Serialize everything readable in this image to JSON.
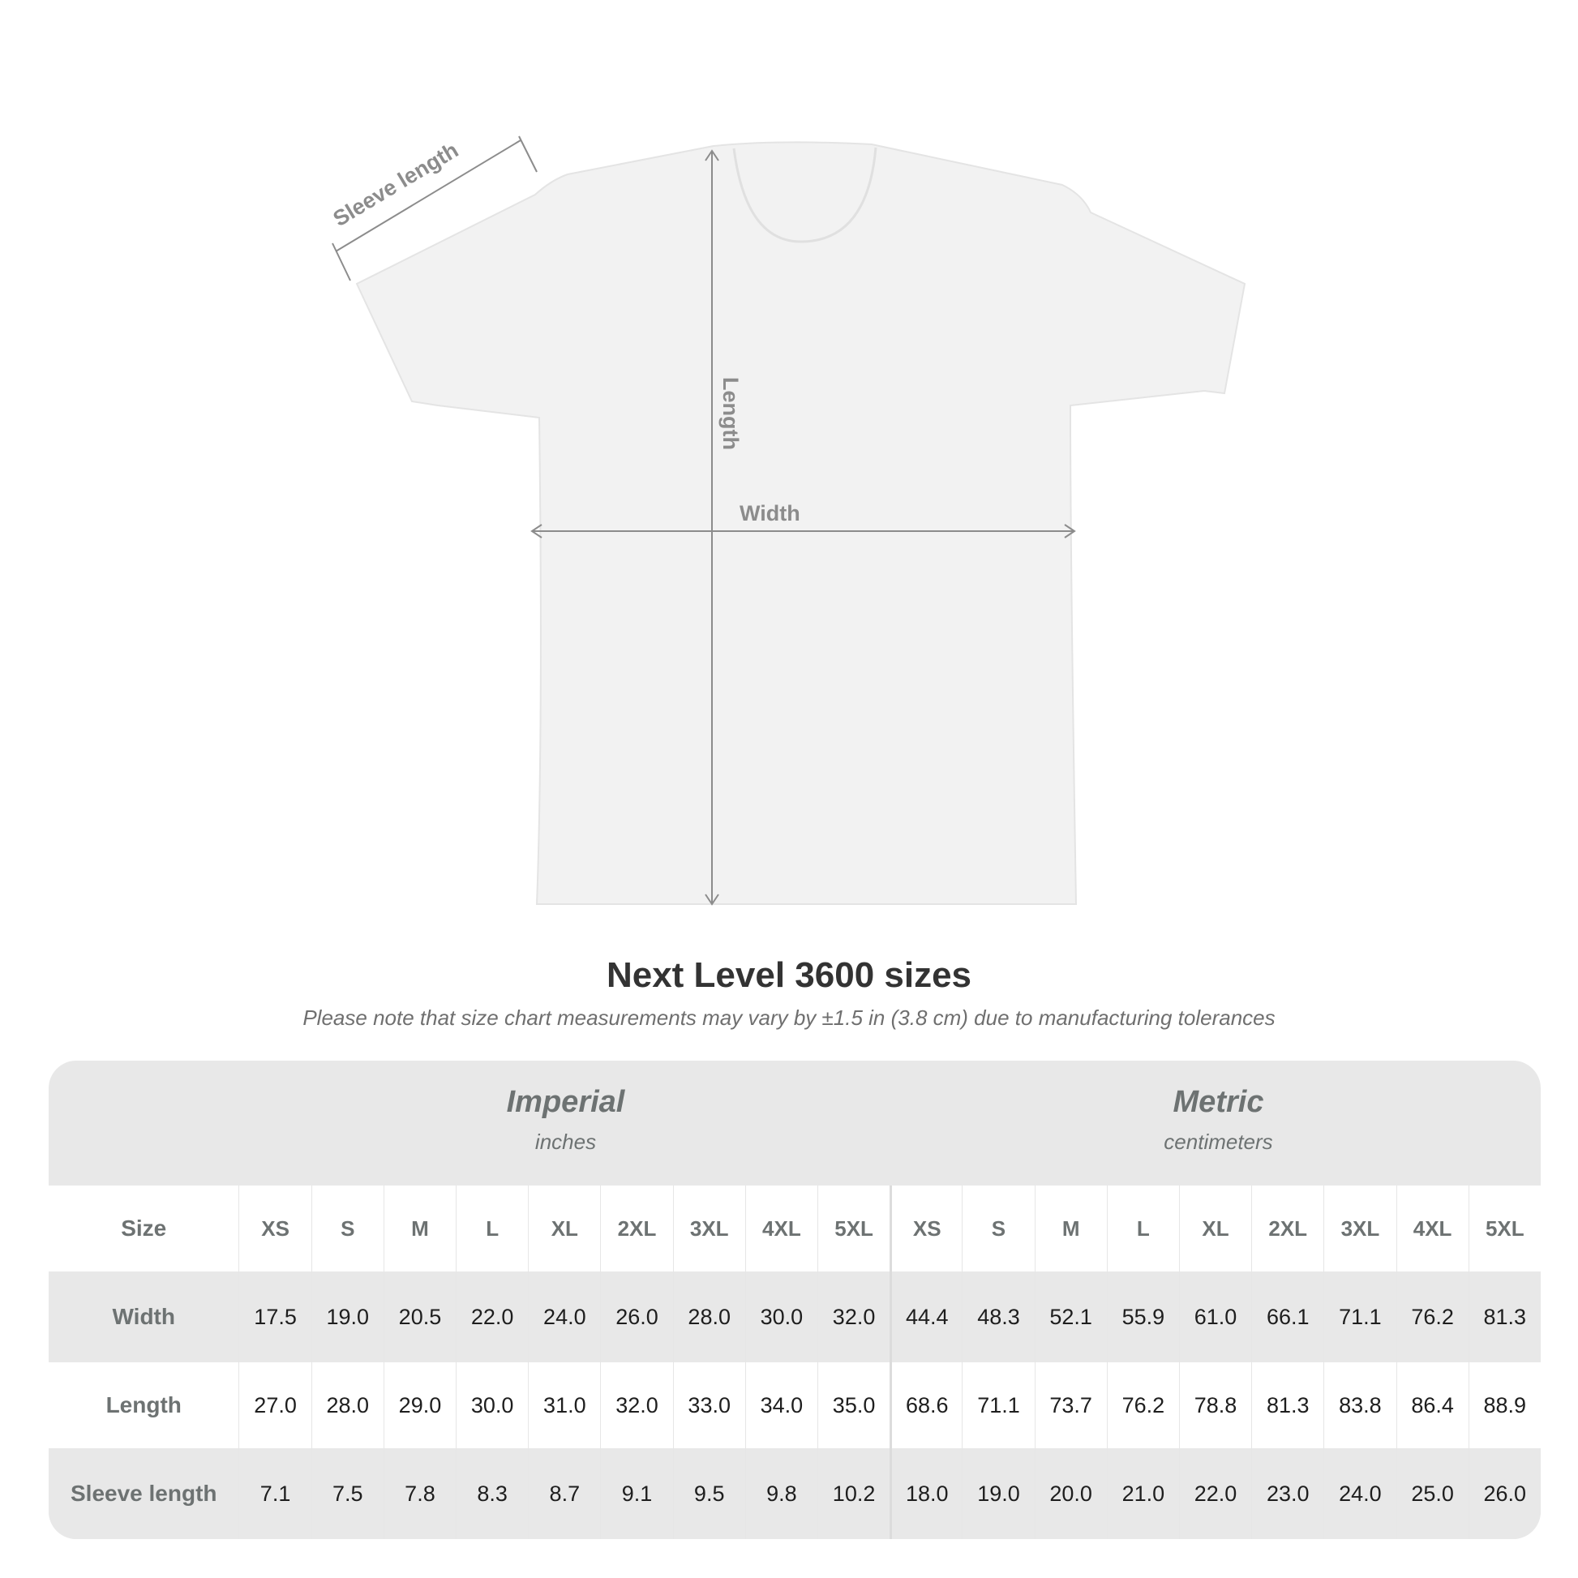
{
  "diagram": {
    "labels": {
      "sleeve": "Sleeve length",
      "length": "Length",
      "width": "Width"
    },
    "shirt_color": "#f2f2f2",
    "arrow_color": "#8c8c8c"
  },
  "title": "Next Level 3600 sizes",
  "note": "Please note that size chart measurements may vary by ±1.5 in (3.8 cm) due to manufacturing tolerances",
  "table": {
    "imperial": {
      "title": "Imperial",
      "unit": "inches"
    },
    "metric": {
      "title": "Metric",
      "unit": "centimeters"
    },
    "size_label": "Size",
    "sizes": [
      "XS",
      "S",
      "M",
      "L",
      "XL",
      "2XL",
      "3XL",
      "4XL",
      "5XL"
    ],
    "rows": [
      {
        "label": "Width",
        "imperial": [
          "17.5",
          "19.0",
          "20.5",
          "22.0",
          "24.0",
          "26.0",
          "28.0",
          "30.0",
          "32.0"
        ],
        "metric": [
          "44.4",
          "48.3",
          "52.1",
          "55.9",
          "61.0",
          "66.1",
          "71.1",
          "76.2",
          "81.3"
        ]
      },
      {
        "label": "Length",
        "imperial": [
          "27.0",
          "28.0",
          "29.0",
          "30.0",
          "31.0",
          "32.0",
          "33.0",
          "34.0",
          "35.0"
        ],
        "metric": [
          "68.6",
          "71.1",
          "73.7",
          "76.2",
          "78.8",
          "81.3",
          "83.8",
          "86.4",
          "88.9"
        ]
      },
      {
        "label": "Sleeve length",
        "imperial": [
          "7.1",
          "7.5",
          "7.8",
          "8.3",
          "8.7",
          "9.1",
          "9.5",
          "9.8",
          "10.2"
        ],
        "metric": [
          "18.0",
          "19.0",
          "20.0",
          "21.0",
          "22.0",
          "23.0",
          "24.0",
          "25.0",
          "26.0"
        ]
      }
    ]
  }
}
